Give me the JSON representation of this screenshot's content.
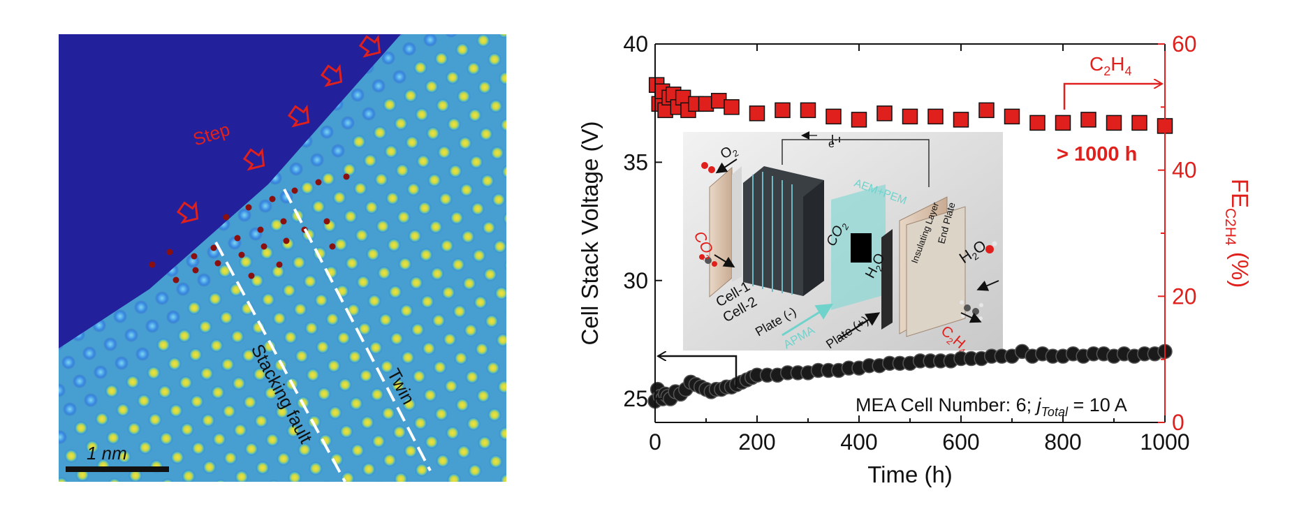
{
  "microscopy": {
    "scale_bar_label": "1 nm",
    "step_label": "Step",
    "stacking_fault_label": "Stacking fault",
    "twin_label": "Twin",
    "background_color": "#22209a",
    "annotation_color": "#e0201c"
  },
  "inset": {
    "o2": "O",
    "o2_sub": "2",
    "co2": "CO",
    "co2_sub": "2",
    "h2o_right_a": "H",
    "h2o_right_sub": "2",
    "h2o_right_b": "O",
    "c2h4_a": "C",
    "c2h4_sub1": "2",
    "c2h4_b": "H",
    "c2h4_sub2": "4",
    "electron": "e",
    "electron_sup": "-",
    "aem_pem": "AEM+PEM",
    "cell1": "Cell-1",
    "cell2": "Cell-2",
    "plate_minus": "Plate (-)",
    "plate_plus": "Plate (+)",
    "apma": "APMA",
    "co2_mid": "CO",
    "co2_mid_sub": "2",
    "h2o_mid_a": "H",
    "h2o_mid_sub": "2",
    "h2o_mid_b": "O",
    "insulating_layer": "Insulating Layer",
    "end_plate": "End Plate"
  },
  "chart_data": {
    "type": "scatter",
    "xlabel": "Time (h)",
    "ylabel_left": "Cell Stack Voltage (V)",
    "ylabel_right_main": "FE",
    "ylabel_right_sub": "C2H4",
    "ylabel_right_unit": "(%)",
    "xlim": [
      0,
      1000
    ],
    "ylim_left": [
      24,
      40
    ],
    "ylim_right": [
      0,
      60
    ],
    "x_ticks": [
      0,
      200,
      400,
      600,
      800,
      1000
    ],
    "y_left_ticks": [
      25,
      30,
      35,
      40
    ],
    "y_right_ticks": [
      0,
      20,
      40,
      60
    ],
    "left_color": "#000000",
    "right_color": "#e0201c",
    "annotation_c2h4_a": "C",
    "annotation_c2h4_sub1": "2",
    "annotation_c2h4_b": "H",
    "annotation_c2h4_sub2": "4",
    "annotation_duration": "> 1000 h",
    "annotation_conditions_a": "MEA Cell Number: 6; ",
    "annotation_conditions_j": "j",
    "annotation_conditions_sub": "Total",
    "annotation_conditions_b": " = 10 A",
    "series": [
      {
        "axis": "right",
        "marker": "square",
        "color": "#e0201c",
        "x": [
          3,
          8,
          14,
          20,
          28,
          36,
          45,
          55,
          65,
          80,
          100,
          125,
          150,
          200,
          250,
          300,
          350,
          400,
          450,
          500,
          550,
          600,
          650,
          700,
          750,
          800,
          850,
          900,
          950,
          1000
        ],
        "y": [
          53.5,
          50.5,
          52.5,
          49.5,
          51.5,
          52,
          50,
          51.5,
          49.5,
          50.5,
          50.5,
          51,
          50,
          49,
          49.5,
          49.5,
          48.5,
          48,
          49,
          48.5,
          48.5,
          48,
          49.5,
          48.5,
          47.5,
          47.5,
          48,
          47.5,
          47.5,
          47
        ]
      },
      {
        "axis": "left",
        "marker": "circle",
        "color": "#000000",
        "x": [
          0,
          5,
          10,
          15,
          20,
          25,
          30,
          40,
          50,
          60,
          70,
          80,
          90,
          100,
          110,
          120,
          130,
          140,
          150,
          160,
          170,
          180,
          190,
          200,
          220,
          240,
          260,
          280,
          300,
          320,
          340,
          360,
          380,
          400,
          420,
          440,
          460,
          480,
          500,
          520,
          540,
          560,
          580,
          600,
          620,
          640,
          660,
          680,
          700,
          720,
          740,
          760,
          780,
          800,
          820,
          840,
          860,
          880,
          900,
          920,
          940,
          960,
          980,
          1000
        ],
        "y": [
          24.9,
          25.4,
          25.1,
          25.0,
          25.2,
          25.1,
          25.0,
          25.3,
          25.2,
          25.4,
          25.7,
          25.6,
          25.5,
          25.4,
          25.3,
          25.4,
          25.4,
          25.5,
          25.5,
          25.6,
          25.7,
          25.8,
          25.9,
          26.0,
          26.0,
          26.0,
          26.1,
          26.1,
          26.1,
          26.2,
          26.2,
          26.2,
          26.3,
          26.3,
          26.4,
          26.4,
          26.5,
          26.5,
          26.5,
          26.6,
          26.6,
          26.6,
          26.6,
          26.7,
          26.7,
          26.7,
          26.8,
          26.8,
          26.8,
          27.0,
          26.8,
          26.9,
          26.8,
          26.8,
          26.9,
          26.8,
          26.9,
          26.9,
          26.8,
          26.9,
          26.8,
          26.9,
          26.9,
          27.0
        ]
      }
    ]
  }
}
